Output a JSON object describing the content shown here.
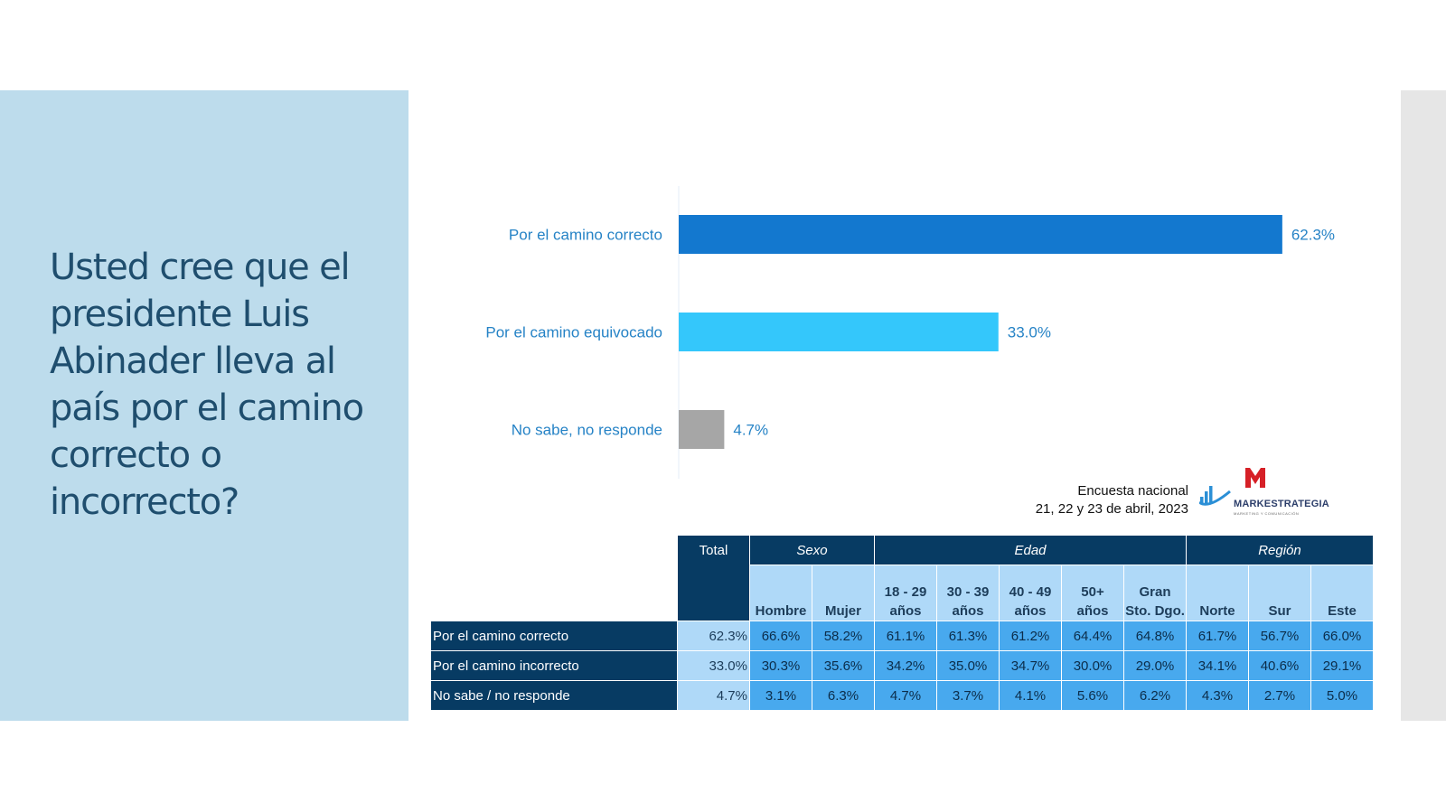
{
  "question": "Usted cree que el presidente Luis Abinader lleva al país por el camino correcto o incorrecto?",
  "chart_data": {
    "type": "bar",
    "orientation": "horizontal",
    "categories": [
      "Por el camino correcto",
      "Por el camino equivocado",
      "No sabe, no responde"
    ],
    "values": [
      62.3,
      33.0,
      4.7
    ],
    "value_labels": [
      "62.3%",
      "33.0%",
      "4.7%"
    ],
    "colors": [
      "#1378cf",
      "#34c7fb",
      "#a6a6a6"
    ],
    "xlim": [
      0,
      100
    ]
  },
  "survey": {
    "line1": "Encuesta nacional",
    "line2": "21, 22 y 23 de abril, 2023"
  },
  "logo": {
    "name": "MARKESTRATEGIA",
    "tagline": "MARKETING Y COMUNICACIÓN",
    "colors": {
      "m": "#d62027",
      "bars": "#2b8fd6"
    }
  },
  "crosstab": {
    "total_label": "Total",
    "groups": [
      "Sexo",
      "Edad",
      "Región"
    ],
    "columns": [
      {
        "l1": "",
        "l2": "Hombre"
      },
      {
        "l1": "",
        "l2": "Mujer"
      },
      {
        "l1": "18 - 29",
        "l2": "años"
      },
      {
        "l1": "30 - 39",
        "l2": "años"
      },
      {
        "l1": "40 - 49",
        "l2": "años"
      },
      {
        "l1": "50+",
        "l2": "años"
      },
      {
        "l1": "Gran",
        "l2": "Sto. Dgo."
      },
      {
        "l1": "",
        "l2": "Norte"
      },
      {
        "l1": "",
        "l2": "Sur"
      },
      {
        "l1": "",
        "l2": "Este"
      }
    ],
    "rows": [
      {
        "label": "Por el camino correcto",
        "total": "62.3%",
        "values": [
          "66.6%",
          "58.2%",
          "61.1%",
          "61.3%",
          "61.2%",
          "64.4%",
          "64.8%",
          "61.7%",
          "56.7%",
          "66.0%"
        ]
      },
      {
        "label": "Por el camino incorrecto",
        "total": "33.0%",
        "values": [
          "30.3%",
          "35.6%",
          "34.2%",
          "35.0%",
          "34.7%",
          "30.0%",
          "29.0%",
          "34.1%",
          "40.6%",
          "29.1%"
        ]
      },
      {
        "label": "No sabe / no responde",
        "total": "4.7%",
        "values": [
          "3.1%",
          "6.3%",
          "4.7%",
          "3.7%",
          "4.1%",
          "5.6%",
          "6.2%",
          "4.3%",
          "2.7%",
          "5.0%"
        ]
      }
    ]
  }
}
